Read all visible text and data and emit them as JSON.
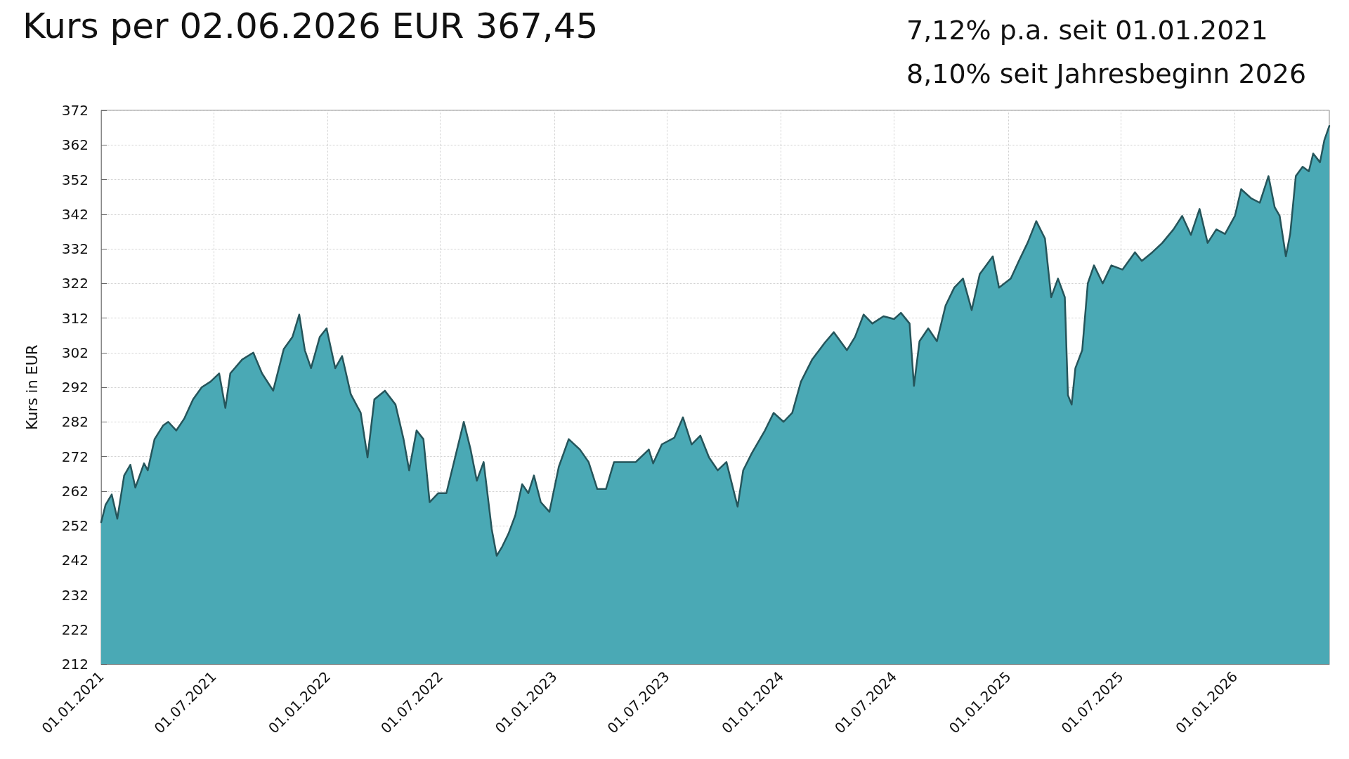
{
  "chart_data": {
    "type": "area",
    "title": "Kurs per 02.06.2026 EUR 367,45",
    "annotations": [
      "7,12% p.a. seit 01.01.2021",
      "8,10% seit Jahresbeginn 2026"
    ],
    "ylabel": "Kurs in EUR",
    "x": [
      "2021-01-01",
      "2021-01-08",
      "2021-01-18",
      "2021-01-27",
      "2021-02-07",
      "2021-02-17",
      "2021-02-25",
      "2021-03-11",
      "2021-03-17",
      "2021-03-28",
      "2021-04-11",
      "2021-04-19",
      "2021-05-02",
      "2021-05-15",
      "2021-05-29",
      "2021-06-12",
      "2021-06-26",
      "2021-07-10",
      "2021-07-20",
      "2021-07-28",
      "2021-08-16",
      "2021-09-03",
      "2021-09-17",
      "2021-10-05",
      "2021-10-22",
      "2021-11-05",
      "2021-11-16",
      "2021-11-25",
      "2021-12-05",
      "2021-12-19",
      "2021-12-30",
      "2022-01-13",
      "2022-01-24",
      "2022-02-07",
      "2022-02-23",
      "2022-03-06",
      "2022-03-17",
      "2022-04-03",
      "2022-04-20",
      "2022-05-03",
      "2022-05-12",
      "2022-05-24",
      "2022-06-04",
      "2022-06-14",
      "2022-06-28",
      "2022-07-11",
      "2022-07-25",
      "2022-08-08",
      "2022-08-19",
      "2022-08-29",
      "2022-09-09",
      "2022-09-22",
      "2022-09-30",
      "2022-10-09",
      "2022-10-19",
      "2022-10-30",
      "2022-11-10",
      "2022-11-20",
      "2022-11-29",
      "2022-12-10",
      "2022-12-24",
      "2023-01-08",
      "2023-01-24",
      "2023-02-11",
      "2023-02-25",
      "2023-03-11",
      "2023-03-25",
      "2023-04-07",
      "2023-04-21",
      "2023-05-12",
      "2023-06-02",
      "2023-06-09",
      "2023-06-23",
      "2023-07-13",
      "2023-07-27",
      "2023-08-10",
      "2023-08-24",
      "2023-09-07",
      "2023-09-21",
      "2023-10-05",
      "2023-10-23",
      "2023-11-01",
      "2023-11-15",
      "2023-12-06",
      "2023-12-20",
      "2024-01-05",
      "2024-01-19",
      "2024-02-02",
      "2024-02-20",
      "2024-03-12",
      "2024-03-26",
      "2024-04-16",
      "2024-04-29",
      "2024-05-13",
      "2024-05-27",
      "2024-06-14",
      "2024-07-01",
      "2024-07-12",
      "2024-07-26",
      "2024-08-02",
      "2024-08-11",
      "2024-08-25",
      "2024-09-08",
      "2024-09-22",
      "2024-10-06",
      "2024-10-20",
      "2024-11-03",
      "2024-11-16",
      "2024-12-07",
      "2024-12-17",
      "2025-01-05",
      "2025-01-18",
      "2025-02-01",
      "2025-02-15",
      "2025-03-01",
      "2025-03-11",
      "2025-03-22",
      "2025-04-02",
      "2025-04-07",
      "2025-04-13",
      "2025-04-19",
      "2025-04-30",
      "2025-05-09",
      "2025-05-19",
      "2025-06-02",
      "2025-06-16",
      "2025-07-04",
      "2025-07-24",
      "2025-08-04",
      "2025-08-21",
      "2025-09-06",
      "2025-09-24",
      "2025-10-08",
      "2025-10-22",
      "2025-11-05",
      "2025-11-18",
      "2025-12-02",
      "2025-12-16",
      "2026-01-01",
      "2026-01-11",
      "2026-01-27",
      "2026-02-10",
      "2026-02-24",
      "2026-03-06",
      "2026-03-14",
      "2026-03-24",
      "2026-03-31",
      "2026-04-09",
      "2026-04-20",
      "2026-04-30",
      "2026-05-07",
      "2026-05-18",
      "2026-05-25",
      "2026-06-02"
    ],
    "series": [
      {
        "color": "#4aa9b5",
        "values": [
          253,
          258,
          261,
          254,
          266.5,
          269.6,
          263,
          270,
          268,
          277,
          281,
          282,
          279.5,
          283,
          288.5,
          292,
          293.6,
          296,
          286,
          296,
          300,
          302,
          296,
          291,
          303,
          306.5,
          313,
          302.7,
          297.5,
          306.5,
          309,
          297.5,
          301,
          290,
          284.6,
          271.7,
          288.5,
          291,
          287,
          277,
          268,
          279.5,
          277,
          258.8,
          261.4,
          261.4,
          271.7,
          282,
          274,
          265,
          270.4,
          251,
          243.3,
          246,
          249.7,
          255,
          264,
          261.4,
          266.5,
          258.8,
          256,
          269,
          277,
          274,
          270.4,
          262.6,
          262.6,
          270.4,
          270.4,
          270.4,
          274,
          270,
          275.5,
          277.4,
          283.3,
          275.5,
          278,
          271.7,
          268,
          270.4,
          257.5,
          268,
          273,
          279.5,
          284.6,
          282,
          284.6,
          293.6,
          300,
          305,
          307.9,
          302.7,
          306.5,
          313,
          310.4,
          312.5,
          311.7,
          313.5,
          310.4,
          292.4,
          305.3,
          309,
          305.3,
          315.6,
          320.8,
          323.4,
          314.3,
          324.7,
          329.8,
          320.8,
          323.4,
          328.5,
          333.7,
          340,
          335,
          318,
          323.4,
          318,
          289.7,
          287,
          297.5,
          302.7,
          322,
          327.2,
          322,
          327.2,
          326,
          331,
          328.5,
          331,
          333.7,
          337.6,
          341.5,
          336,
          343.5,
          333.7,
          337.6,
          336.3,
          341.5,
          349.2,
          346.6,
          345.3,
          353,
          344,
          341.5,
          329.8,
          336.3,
          353,
          355.7,
          354.4,
          359.5,
          357,
          363.4,
          367.5
        ]
      }
    ],
    "xlim": [
      "2021-01-01",
      "2026-06-02"
    ],
    "xticks": [
      {
        "value": "2021-01-01",
        "label": "01.01.2021"
      },
      {
        "value": "2021-07-01",
        "label": "01.07.2021"
      },
      {
        "value": "2022-01-01",
        "label": "01.01.2022"
      },
      {
        "value": "2022-07-01",
        "label": "01.07.2022"
      },
      {
        "value": "2023-01-01",
        "label": "01.01.2023"
      },
      {
        "value": "2023-07-01",
        "label": "01.07.2023"
      },
      {
        "value": "2024-01-01",
        "label": "01.01.2024"
      },
      {
        "value": "2024-07-01",
        "label": "01.07.2024"
      },
      {
        "value": "2025-01-01",
        "label": "01.01.2025"
      },
      {
        "value": "2025-07-01",
        "label": "01.07.2025"
      },
      {
        "value": "2026-01-01",
        "label": "01.01.2026"
      }
    ],
    "ylim": [
      212,
      372
    ],
    "yticks": [
      212,
      222,
      232,
      242,
      252,
      262,
      272,
      282,
      292,
      302,
      312,
      322,
      332,
      342,
      352,
      362,
      372
    ],
    "grid": true,
    "marker": "none",
    "line_style": "solid"
  }
}
